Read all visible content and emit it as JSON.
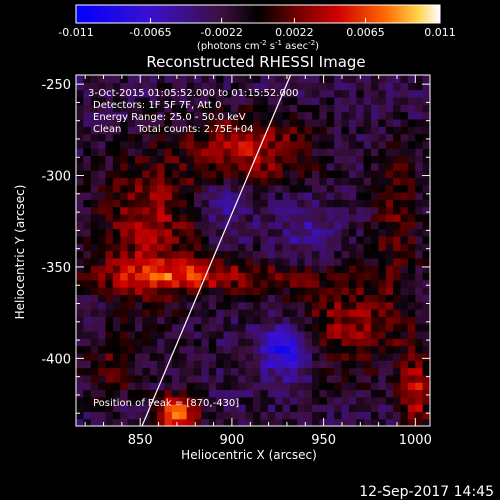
{
  "chart_data": {
    "type": "heatmap",
    "title": "Reconstructed RHESSI Image",
    "xlabel": "Heliocentric X (arcsec)",
    "ylabel": "Heliocentric Y (arcsec)",
    "xlim": [
      815,
      1008
    ],
    "ylim": [
      -437,
      -245
    ],
    "x_ticks": [
      850,
      900,
      950,
      1000
    ],
    "x_tick_labels": [
      "850",
      "900",
      "950",
      "1000"
    ],
    "y_ticks": [
      -250,
      -300,
      -350,
      -400
    ],
    "y_tick_labels": [
      "-250",
      "-300",
      "-350",
      "-400"
    ],
    "colorbar": {
      "range": [
        -0.011,
        0.011
      ],
      "ticks": [
        -0.011,
        -0.0065,
        -0.0022,
        0.0022,
        0.0065,
        0.011
      ],
      "tick_labels": [
        "-0.011",
        "-0.0065",
        "-0.0022",
        "0.0022",
        "0.0065",
        "0.011"
      ],
      "units_text": "(photons cm",
      "units_sup1": "-2",
      "units_mid": " s",
      "units_sup2": "-1",
      "units_mid2": " asec",
      "units_sup3": "-2",
      "units_end": ")"
    },
    "annotations": [
      "3-Oct-2015 01:05:52.000 to 01:15:52.000",
      "Detectors: 1F 5F 7F, Att 0",
      "Energy Range: 25.0 - 50.0 keV",
      "Clean     Total counts: 2.75E+04",
      "Position of Peak = [870,-430]"
    ],
    "peak_position": [
      870,
      -430
    ],
    "limb_line": {
      "x": [
        851,
        932
      ],
      "y": [
        -437,
        -245
      ]
    },
    "features": [
      {
        "cx": 870,
        "cy": -430,
        "sx": 8,
        "sy": 7,
        "amp": 0.95
      },
      {
        "cx": 1000,
        "cy": -420,
        "sx": 6,
        "sy": 15,
        "amp": 0.6
      },
      {
        "cx": 930,
        "cy": -395,
        "sx": 10,
        "sy": 10,
        "amp": -0.7
      },
      {
        "cx": 855,
        "cy": -330,
        "sx": 20,
        "sy": 30,
        "amp": 0.5
      },
      {
        "cx": 910,
        "cy": -285,
        "sx": 25,
        "sy": 14,
        "amp": 0.55
      },
      {
        "cx": 880,
        "cy": -355,
        "sx": 40,
        "sy": 6,
        "amp": 0.55
      },
      {
        "cx": 965,
        "cy": -380,
        "sx": 25,
        "sy": 20,
        "amp": 0.45
      },
      {
        "cx": 990,
        "cy": -320,
        "sx": 10,
        "sy": 25,
        "amp": 0.35
      },
      {
        "cx": 895,
        "cy": -315,
        "sx": 10,
        "sy": 10,
        "amp": -0.3
      },
      {
        "cx": 940,
        "cy": -330,
        "sx": 10,
        "sy": 12,
        "amp": -0.25
      },
      {
        "cx": 835,
        "cy": -405,
        "sx": 12,
        "sy": 12,
        "amp": 0.3
      }
    ]
  },
  "footer": {
    "date": "12-Sep-2017 14:45"
  }
}
